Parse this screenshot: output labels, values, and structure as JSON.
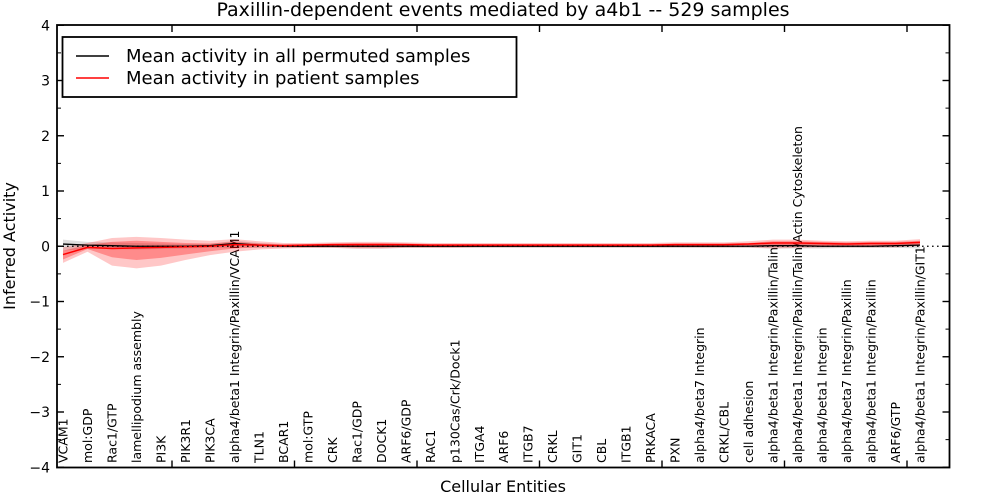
{
  "chart_data": {
    "type": "line",
    "title": "Paxillin-dependent events mediated by a4b1 -- 529 samples",
    "xlabel": "Cellular Entities",
    "ylabel": "Inferred Activity",
    "ylim": [
      -4,
      4
    ],
    "yticks": [
      4,
      3,
      2,
      1,
      0,
      -1,
      -2,
      -3,
      -4
    ],
    "grid": false,
    "legend_position": "upper left",
    "legend": [
      {
        "label": "Mean activity in all permuted samples",
        "color": "#000000"
      },
      {
        "label": "Mean activity in patient samples",
        "color": "#ff0000"
      }
    ],
    "categories": [
      "VCAM1",
      "mol:GDP",
      "Rac1/GTP",
      "lamellipodium assembly",
      "PI3K",
      "PIK3R1",
      "PIK3CA",
      "alpha4/beta1 Integrin/Paxillin/VCAM1",
      "TLN1",
      "BCAR1",
      "mol:GTP",
      "CRK",
      "Rac1/GDP",
      "DOCK1",
      "ARF6/GDP",
      "RAC1",
      "p130Cas/Crk/Dock1",
      "ITGA4",
      "ARF6",
      "ITGB7",
      "CRKL",
      "GIT1",
      "CBL",
      "ITGB1",
      "PRKACA",
      "PXN",
      "alpha4/beta7 Integrin",
      "CRKL/CBL",
      "cell adhesion",
      "alpha4/beta1 Integrin/Paxillin/Talin",
      "alpha4/beta1 Integrin/Paxillin/Talin/Actin Cytoskeleton",
      "alpha4/beta1 Integrin",
      "alpha4/beta7 Integrin/Paxillin",
      "alpha4/beta1 Integrin/Paxillin",
      "ARF6/GTP",
      "alpha4/beta1 Integrin/Paxillin/GIT1"
    ],
    "series": [
      {
        "name": "Mean activity in all permuted samples",
        "color": "#000000",
        "values": [
          0.04,
          0.02,
          0.01,
          0.0,
          0.0,
          0.0,
          0.01,
          0.05,
          0.02,
          0.0,
          0.0,
          0.0,
          0.0,
          0.0,
          0.0,
          0.0,
          0.0,
          0.0,
          0.0,
          0.0,
          0.0,
          0.0,
          0.0,
          0.0,
          0.0,
          0.0,
          0.0,
          0.0,
          0.0,
          0.01,
          0.01,
          0.0,
          0.0,
          0.0,
          0.01,
          0.02
        ]
      },
      {
        "name": "Mean activity in patient samples",
        "color": "#ff0000",
        "values": [
          -0.15,
          -0.02,
          -0.04,
          -0.03,
          -0.02,
          -0.01,
          0.0,
          0.03,
          0.02,
          0.01,
          0.02,
          0.03,
          0.03,
          0.03,
          0.03,
          0.02,
          0.02,
          0.02,
          0.02,
          0.02,
          0.02,
          0.02,
          0.02,
          0.02,
          0.02,
          0.03,
          0.03,
          0.03,
          0.04,
          0.06,
          0.06,
          0.05,
          0.04,
          0.05,
          0.05,
          0.07
        ]
      }
    ],
    "bands": [
      {
        "name": "permuted-samples-interval",
        "color": "#000000",
        "opacity": 0.13,
        "lo": [
          -0.08,
          -0.05,
          -0.05,
          -0.06,
          -0.05,
          -0.04,
          -0.03,
          -0.03,
          -0.03,
          -0.03,
          -0.03,
          -0.03,
          -0.04,
          -0.04,
          -0.03,
          -0.03,
          -0.03,
          -0.03,
          -0.03,
          -0.03,
          -0.03,
          -0.03,
          -0.03,
          -0.03,
          -0.03,
          -0.03,
          -0.03,
          -0.03,
          -0.03,
          -0.04,
          -0.04,
          -0.04,
          -0.03,
          -0.03,
          -0.03,
          -0.04
        ],
        "hi": [
          0.12,
          0.08,
          0.07,
          0.06,
          0.05,
          0.04,
          0.04,
          0.1,
          0.06,
          0.03,
          0.03,
          0.03,
          0.04,
          0.04,
          0.03,
          0.03,
          0.03,
          0.03,
          0.03,
          0.03,
          0.03,
          0.03,
          0.03,
          0.03,
          0.03,
          0.03,
          0.03,
          0.03,
          0.03,
          0.04,
          0.04,
          0.04,
          0.03,
          0.03,
          0.04,
          0.06
        ]
      },
      {
        "name": "patient-samples-outer-interval",
        "color": "#ff0000",
        "opacity": 0.22,
        "lo": [
          -0.3,
          -0.1,
          -0.35,
          -0.4,
          -0.35,
          -0.25,
          -0.16,
          -0.1,
          -0.06,
          -0.04,
          -0.03,
          -0.03,
          -0.04,
          -0.04,
          -0.03,
          -0.03,
          -0.03,
          -0.02,
          -0.02,
          -0.02,
          -0.02,
          -0.02,
          -0.02,
          -0.02,
          -0.02,
          -0.02,
          -0.02,
          -0.02,
          -0.02,
          -0.04,
          -0.03,
          -0.02,
          -0.02,
          -0.02,
          -0.02,
          0.0
        ],
        "hi": [
          -0.02,
          0.06,
          0.15,
          0.17,
          0.15,
          0.12,
          0.1,
          0.13,
          0.09,
          0.06,
          0.06,
          0.07,
          0.08,
          0.08,
          0.07,
          0.06,
          0.06,
          0.06,
          0.06,
          0.06,
          0.06,
          0.06,
          0.06,
          0.06,
          0.06,
          0.07,
          0.07,
          0.07,
          0.09,
          0.12,
          0.12,
          0.1,
          0.09,
          0.1,
          0.1,
          0.13
        ]
      },
      {
        "name": "patient-samples-inner-interval",
        "color": "#ff0000",
        "opacity": 0.3,
        "lo": [
          -0.24,
          -0.05,
          -0.2,
          -0.25,
          -0.21,
          -0.15,
          -0.09,
          -0.04,
          -0.02,
          -0.01,
          -0.01,
          -0.01,
          -0.02,
          -0.02,
          -0.01,
          -0.01,
          -0.01,
          -0.01,
          -0.01,
          -0.01,
          -0.01,
          -0.01,
          -0.01,
          -0.01,
          -0.01,
          -0.01,
          -0.01,
          -0.01,
          0.0,
          -0.01,
          0.0,
          0.0,
          0.0,
          0.0,
          0.0,
          0.02
        ],
        "hi": [
          -0.08,
          0.02,
          0.08,
          0.1,
          0.08,
          0.06,
          0.05,
          0.08,
          0.05,
          0.04,
          0.04,
          0.05,
          0.06,
          0.06,
          0.05,
          0.04,
          0.04,
          0.04,
          0.04,
          0.04,
          0.04,
          0.04,
          0.04,
          0.04,
          0.04,
          0.05,
          0.05,
          0.05,
          0.06,
          0.09,
          0.09,
          0.08,
          0.07,
          0.08,
          0.08,
          0.1
        ]
      }
    ],
    "zero_line": {
      "value": 0,
      "style": "dotted",
      "color": "#000000"
    }
  },
  "colors": {
    "background": "#ffffff",
    "axis": "#000000",
    "permuted_line": "#000000",
    "patient_line": "#ff0000"
  }
}
